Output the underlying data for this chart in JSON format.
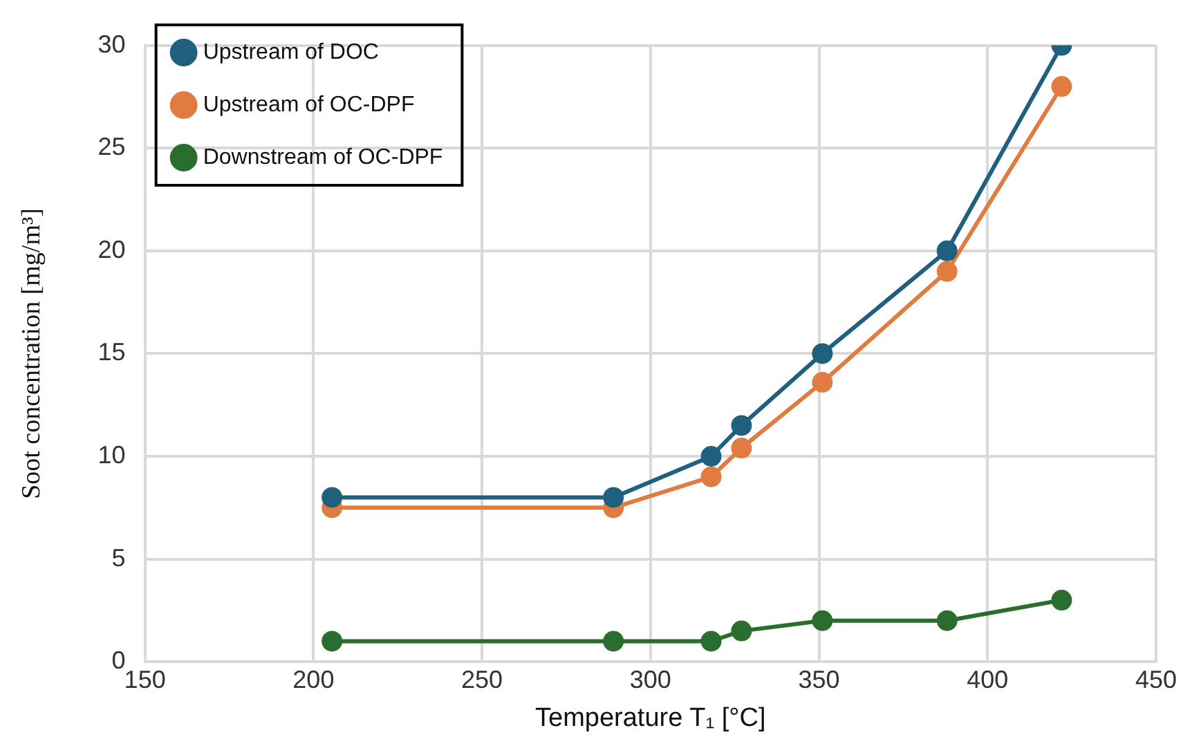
{
  "chart_data": {
    "type": "line",
    "xlabel": "Temperature T₁ [°C]",
    "ylabel": "Soot concentration [mg/m³]",
    "xlim": [
      150,
      450
    ],
    "xticks": [
      150,
      200,
      250,
      300,
      350,
      400,
      450
    ],
    "ylim": [
      0,
      30
    ],
    "yticks": [
      0,
      5,
      10,
      15,
      20,
      25,
      30
    ],
    "grid": true,
    "legend": "top left",
    "marker": "circle",
    "line_style": "solid",
    "series": [
      {
        "name": "Upstream of DOC",
        "color": "#20607f",
        "x": [
          205.5,
          289,
          318,
          327,
          351,
          388,
          422
        ],
        "values": [
          8,
          8,
          10,
          11.5,
          15,
          20,
          30
        ]
      },
      {
        "name": "Upstream of OC-DPF",
        "color": "#e07b42",
        "x": [
          205.5,
          289,
          318,
          327,
          351,
          388,
          422
        ],
        "values": [
          7.5,
          7.5,
          9,
          10.4,
          13.6,
          19,
          28
        ]
      },
      {
        "name": "Downstream of OC-DPF",
        "color": "#2a6e2f",
        "x": [
          205.5,
          289,
          318,
          327,
          351,
          388,
          422
        ],
        "values": [
          1,
          1,
          1,
          1.5,
          2,
          2,
          3
        ]
      }
    ]
  }
}
